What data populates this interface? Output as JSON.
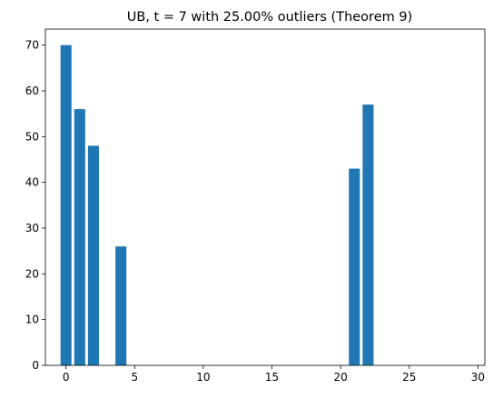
{
  "chart_data": {
    "type": "bar",
    "title": "UB, t = 7 with 25.00% outliers (Theorem 9)",
    "xlabel": "",
    "ylabel": "",
    "x": [
      0,
      1,
      2,
      4,
      21,
      22
    ],
    "values": [
      70,
      56,
      48,
      26,
      43,
      57
    ],
    "xlim": [
      -1.5,
      30.5
    ],
    "ylim": [
      0,
      73.5
    ],
    "xticks": [
      0,
      5,
      10,
      15,
      20,
      25,
      30
    ],
    "yticks": [
      0,
      10,
      20,
      30,
      40,
      50,
      60,
      70
    ],
    "bar_color": "#1f77b4",
    "grid": false,
    "legend": "none"
  }
}
